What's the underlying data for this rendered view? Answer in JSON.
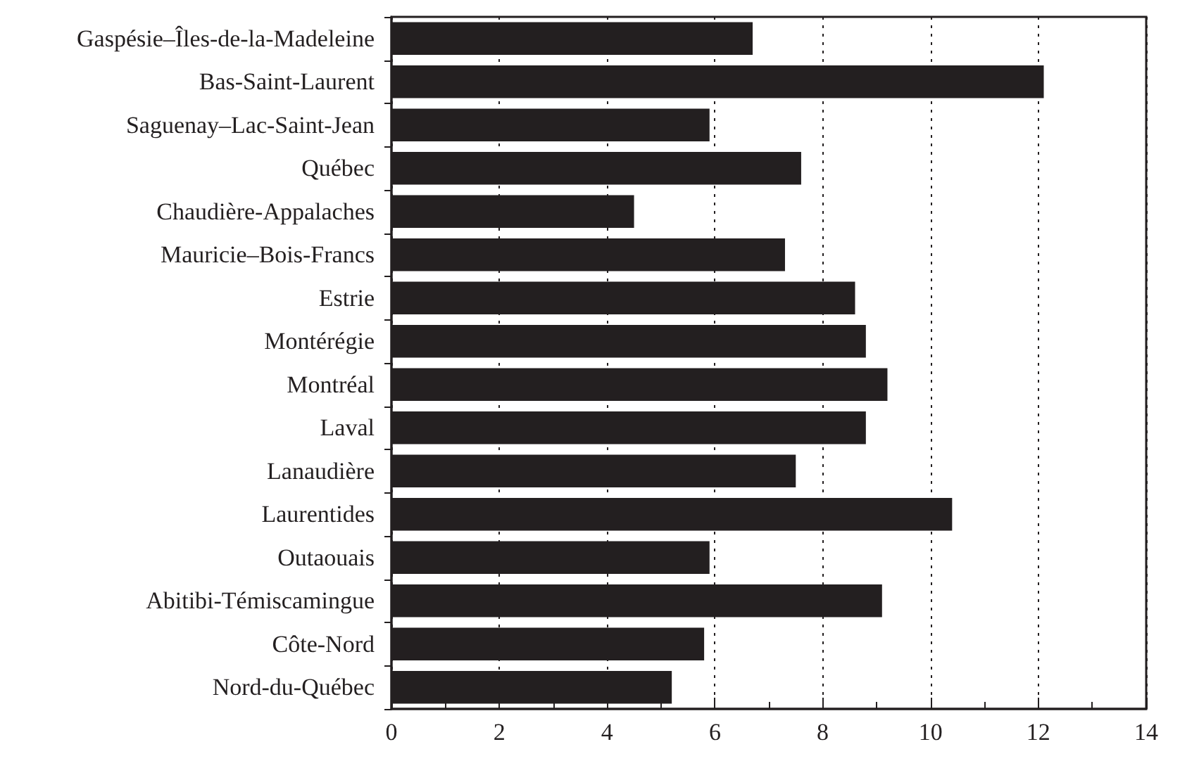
{
  "chart_data": {
    "type": "bar",
    "orientation": "horizontal",
    "categories": [
      "Gaspésie–Îles-de-la-Madeleine",
      "Bas-Saint-Laurent",
      "Saguenay–Lac-Saint-Jean",
      "Québec",
      "Chaudière-Appalaches",
      "Mauricie–Bois-Francs",
      "Estrie",
      "Montérégie",
      "Montréal",
      "Laval",
      "Lanaudière",
      "Laurentides",
      "Outaouais",
      "Abitibi-Témiscamingue",
      "Côte-Nord",
      "Nord-du-Québec"
    ],
    "values": [
      6.7,
      12.1,
      5.9,
      7.6,
      4.5,
      7.3,
      8.6,
      8.8,
      9.2,
      8.8,
      7.5,
      10.4,
      5.9,
      9.1,
      5.8,
      5.2
    ],
    "color": "#231f20",
    "xlim": [
      0,
      14
    ],
    "xticks": [
      0,
      2,
      4,
      6,
      8,
      10,
      12,
      14
    ],
    "grid": "x"
  }
}
